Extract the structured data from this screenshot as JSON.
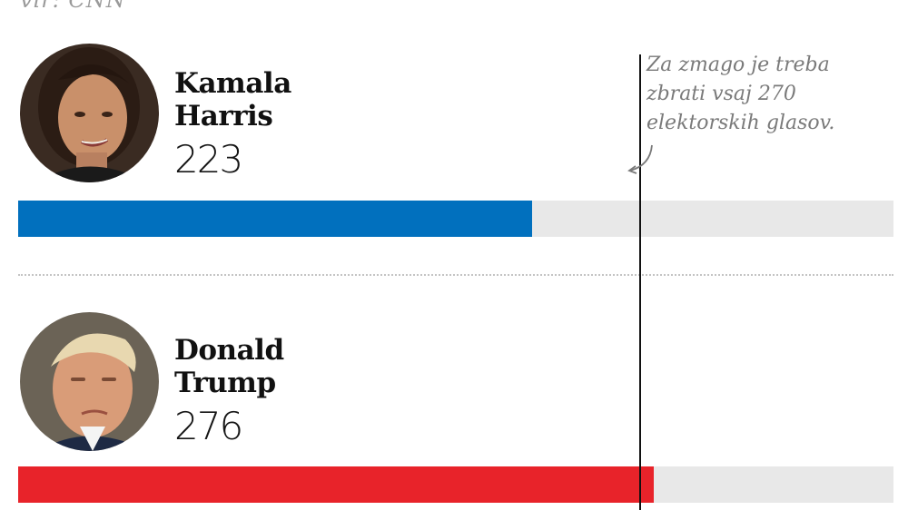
{
  "source_fragment": "vir: CNN",
  "threshold_note": "Za zmago je treba\nzbrati vsaj 270\nelektorskih glasov.",
  "chart_data": {
    "type": "bar",
    "title": "",
    "xlabel": "",
    "ylabel": "",
    "xlim": [
      0,
      380
    ],
    "threshold": 270,
    "categories": [
      "Kamala Harris",
      "Donald Trump"
    ],
    "values": [
      223,
      276
    ],
    "colors": [
      "#0170be",
      "#e8232a"
    ],
    "track_color": "#e8e8e8",
    "candidates": [
      {
        "name_line1": "Kamala",
        "name_line2": "Harris",
        "votes": "223"
      },
      {
        "name_line1": "Donald",
        "name_line2": "Trump",
        "votes": "276"
      }
    ]
  }
}
